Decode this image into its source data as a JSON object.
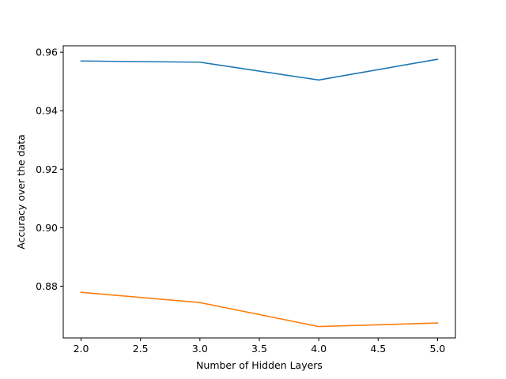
{
  "chart_data": {
    "type": "line",
    "title": "",
    "xlabel": "Number of Hidden Layers",
    "ylabel": "Accuracy over the data",
    "xlim": [
      1.85,
      5.15
    ],
    "ylim": [
      0.8623,
      0.9622
    ],
    "x_ticks": [
      2.0,
      2.5,
      3.0,
      3.5,
      4.0,
      4.5,
      5.0
    ],
    "x_tick_labels": [
      "2.0",
      "2.5",
      "3.0",
      "3.5",
      "4.0",
      "4.5",
      "5.0"
    ],
    "y_ticks": [
      0.88,
      0.9,
      0.92,
      0.94,
      0.96
    ],
    "y_tick_labels": [
      "0.88",
      "0.90",
      "0.92",
      "0.94",
      "0.96"
    ],
    "grid": false,
    "legend": "none",
    "x": [
      2,
      3,
      4,
      5
    ],
    "series": [
      {
        "values": [
          0.957,
          0.9566,
          0.9505,
          0.9576
        ],
        "color": "#1f77b4"
      },
      {
        "values": [
          0.8779,
          0.8744,
          0.8662,
          0.8674
        ],
        "color": "#ff7f0e"
      }
    ]
  }
}
